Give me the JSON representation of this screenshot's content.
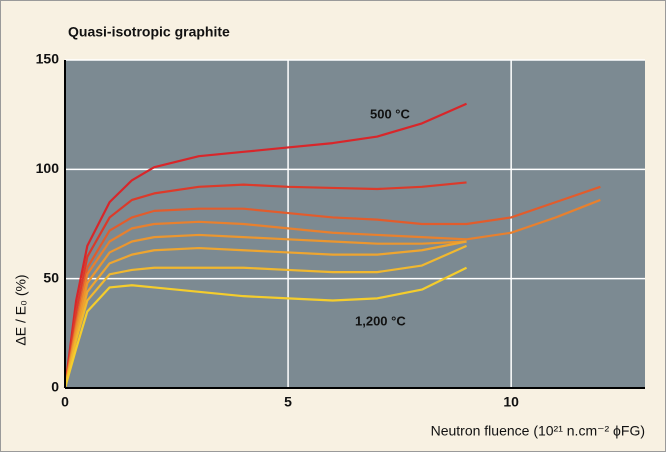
{
  "chart_data": {
    "type": "line",
    "title": "Quasi-isotropic graphite",
    "x_label": "Neutron fluence (10²¹ n.cm⁻² ϕFG)",
    "y_label": "ΔE / E₀ (%)",
    "annotations": [
      "500 °C",
      "1,200 °C"
    ],
    "x": [
      0,
      0.25,
      0.5,
      1,
      1.5,
      2,
      3,
      4,
      5,
      6,
      7,
      8,
      9,
      10,
      11,
      12
    ],
    "series": [
      {
        "color": "#d8262a",
        "values": [
          0,
          40,
          65,
          85,
          95,
          101,
          106,
          108,
          110,
          112,
          115,
          121,
          130,
          null,
          null,
          null
        ]
      },
      {
        "color": "#dc3a2a",
        "values": [
          0,
          35,
          60,
          78,
          86,
          89,
          92,
          93,
          92,
          91.5,
          91,
          92,
          94,
          null,
          null,
          null
        ]
      },
      {
        "color": "#e25c2c",
        "values": [
          0,
          30,
          55,
          72,
          78,
          81,
          82,
          82,
          80,
          78,
          77,
          75,
          75,
          78,
          85,
          92
        ]
      },
      {
        "color": "#e8802e",
        "values": [
          0,
          28,
          52,
          67,
          73,
          75,
          76,
          75,
          73,
          71,
          70,
          69,
          68,
          71,
          78,
          86
        ]
      },
      {
        "color": "#eb962f",
        "values": [
          0,
          26,
          48,
          62,
          67,
          69,
          70,
          69,
          68,
          67,
          66,
          66,
          67,
          null,
          null,
          null
        ]
      },
      {
        "color": "#eea530",
        "values": [
          0,
          24,
          44,
          57,
          61,
          63,
          64,
          63,
          62,
          61,
          61,
          63,
          67,
          null,
          null,
          null
        ]
      },
      {
        "color": "#f1b82f",
        "values": [
          0,
          22,
          40,
          52,
          54,
          55,
          55,
          55,
          54,
          53,
          53,
          56,
          65,
          null,
          null,
          null
        ]
      },
      {
        "color": "#f5cd2c",
        "values": [
          0,
          18,
          35,
          46,
          47,
          46,
          44,
          42,
          41,
          40,
          41,
          45,
          55,
          null,
          null,
          null
        ]
      }
    ],
    "xlim": [
      0,
      13
    ],
    "xticks": [
      0,
      5,
      10
    ],
    "ylim": [
      0,
      150
    ],
    "yticks": [
      0,
      50,
      100,
      150
    ],
    "grid": true
  }
}
